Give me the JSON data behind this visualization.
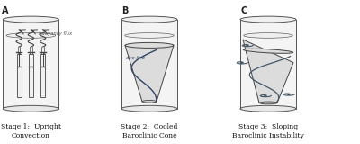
{
  "background_color": "#ffffff",
  "panel_labels": [
    "A",
    "B",
    "C"
  ],
  "stage_labels": [
    "Stage 1:  Upright\nConvection",
    "Stage 2:  Cooled\nBaroclinic Cone",
    "Stage 3:  Sloping\nBaroclinic Instability"
  ],
  "figsize": [
    4.0,
    1.6
  ],
  "dpi": 100,
  "cyl_color": "#aaaaaa",
  "cyl_fill": "#f8f8f8",
  "cyl_inner_fill": "#eeeeee",
  "cone_fill": "#dcdcdc",
  "line_color": "#555555",
  "dark_line": "#444444",
  "label_color": "#111111",
  "annot_color": "#555555"
}
